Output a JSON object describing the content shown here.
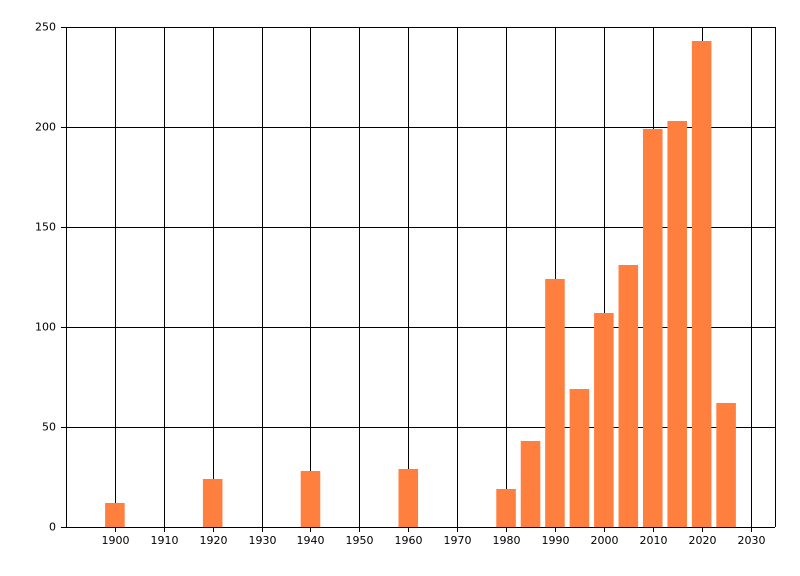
{
  "chart_data": {
    "type": "bar",
    "x": [
      1900,
      1920,
      1940,
      1960,
      1980,
      1985,
      1990,
      1995,
      2000,
      2005,
      2010,
      2015,
      2020,
      2025
    ],
    "values": [
      12,
      24,
      28,
      29,
      19,
      43,
      124,
      69,
      107,
      131,
      199,
      203,
      243,
      62
    ],
    "color": "#ff7f3f",
    "xlim": [
      1890,
      2035
    ],
    "xticks": [
      1900,
      1910,
      1920,
      1930,
      1940,
      1950,
      1960,
      1970,
      1980,
      1990,
      2000,
      2010,
      2020,
      2030
    ],
    "ylim": [
      0,
      250
    ],
    "yticks": [
      0,
      50,
      100,
      150,
      200,
      250
    ],
    "grid": true
  }
}
